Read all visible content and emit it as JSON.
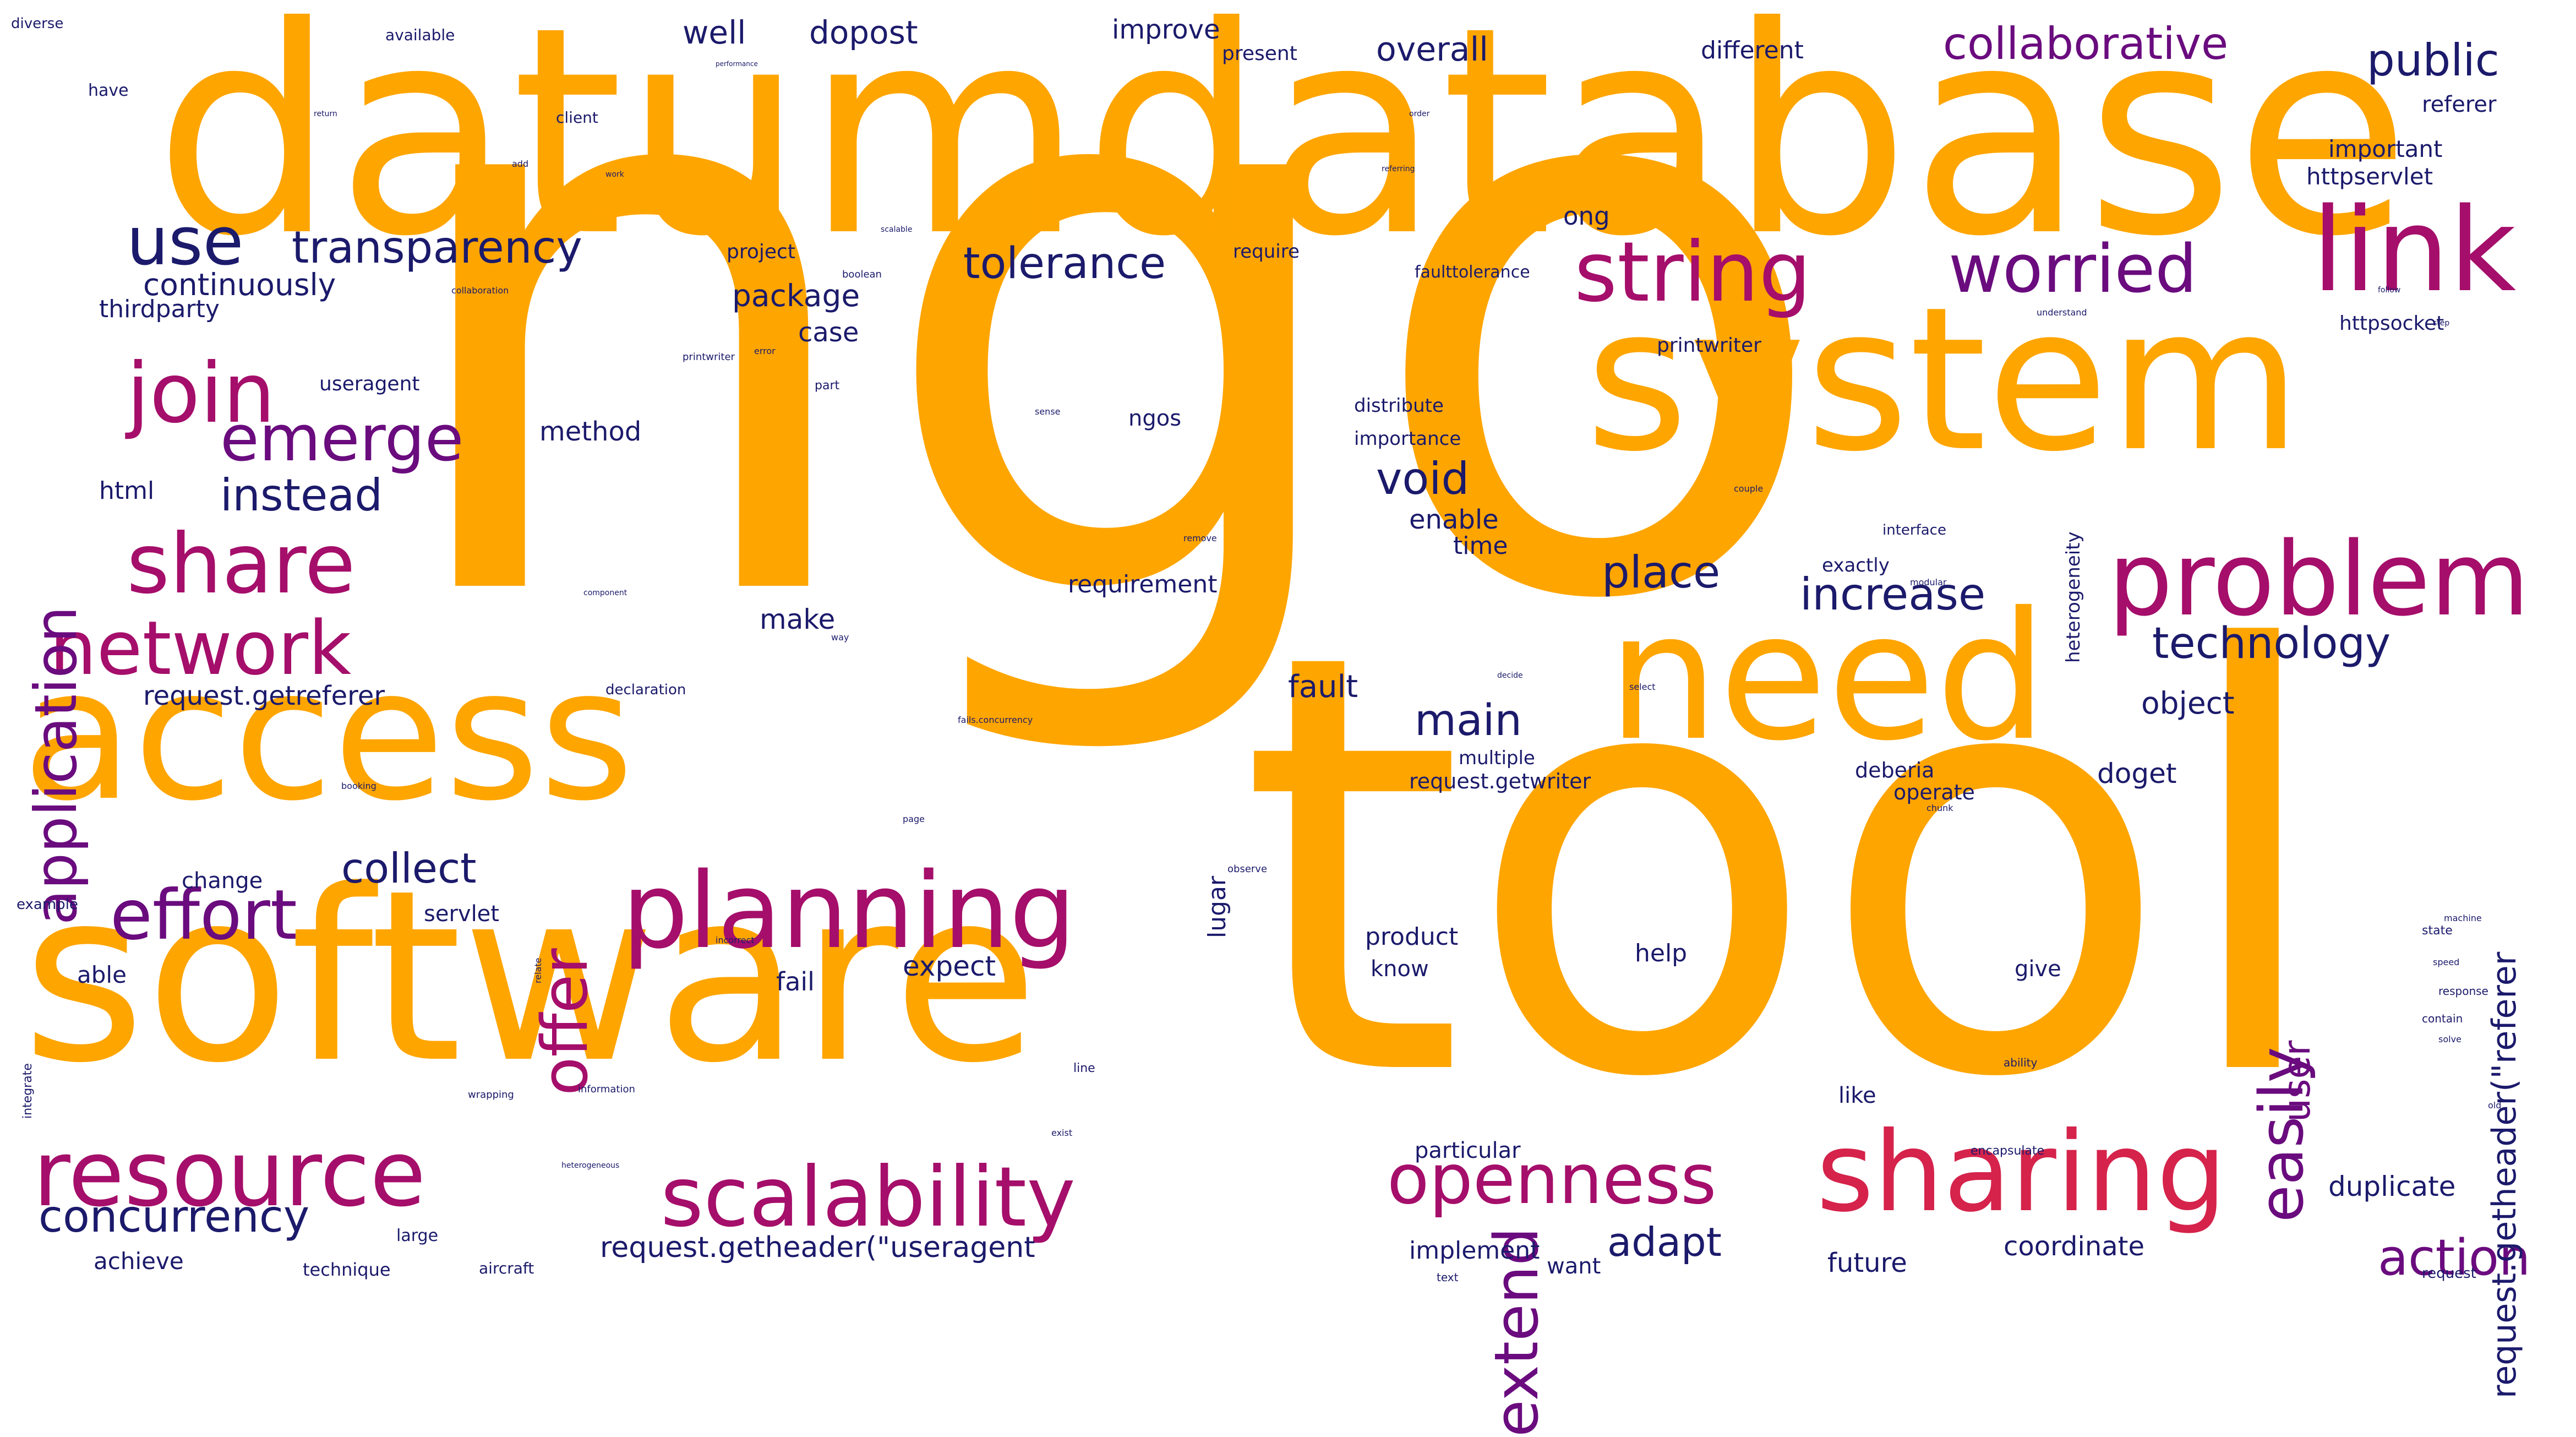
{
  "palette": {
    "orange": "#ffa500",
    "crimson": "#d5234b",
    "magenta": "#a50e6a",
    "purple": "#6a0b7e",
    "navy": "#1b1a6b"
  },
  "words": [
    "ngo",
    "tool",
    "datumdatabase",
    "system",
    "software",
    "access",
    "need",
    "link",
    "problem",
    "planning",
    "sharing",
    "resource",
    "scalability",
    "openness",
    "string",
    "share",
    "network",
    "join",
    "worried",
    "emerge",
    "effort",
    "easily",
    "application",
    "offer",
    "collaborative",
    "transparency",
    "concurrency",
    "use",
    "increase",
    "technology",
    "instead",
    "void",
    "tolerance",
    "place",
    "collect",
    "public",
    "main",
    "extend",
    "action",
    "request.getheader(\"referer",
    "request.getheader(\"useragent",
    "user",
    "adapt",
    "continuously",
    "package",
    "object",
    "overall",
    "dopost",
    "well",
    "improve",
    "fault",
    "request.getreferer",
    "case",
    "make",
    "doget",
    "method",
    "duplicate",
    "enable",
    "time",
    "requirement",
    "expect",
    "html",
    "thirdparty",
    "ong",
    "httpservlet",
    "important",
    "referer",
    "different",
    "present",
    "coordinate",
    "future",
    "product",
    "know",
    "fail",
    "help",
    "able",
    "achieve",
    "implement",
    "want",
    "servlet",
    "change",
    "particular",
    "like",
    "give",
    "lugar",
    "ngos",
    "deberia",
    "operate",
    "printwriter",
    "request.getwriter",
    "multiple",
    "exactly",
    "importance",
    "distribute",
    "project",
    "useragent",
    "httpsocket",
    "heterogeneity",
    "interface",
    "request",
    "diverse",
    "have",
    "available",
    "performance",
    "return",
    "client",
    "add",
    "order",
    "work",
    "referring",
    "boolean",
    "collaboration",
    "scalable",
    "require",
    "faulttolerance",
    "error",
    "part",
    "printwriter",
    "understand",
    "follow",
    "step",
    "decide",
    "example",
    "technique",
    "aircraft",
    "large",
    "integrate",
    "text",
    "information",
    "wrapping",
    "line",
    "exist",
    "heterogeneous",
    "component",
    "declaration",
    "way",
    "remove",
    "machine",
    "speed",
    "state",
    "contain",
    "response",
    "solve",
    "old",
    "encapsulate",
    "ability",
    "observe",
    "incorrect",
    "booking",
    "page",
    "chunk",
    "relate",
    "couple",
    "modular",
    "select",
    "sense",
    "fails.concurrency"
  ]
}
